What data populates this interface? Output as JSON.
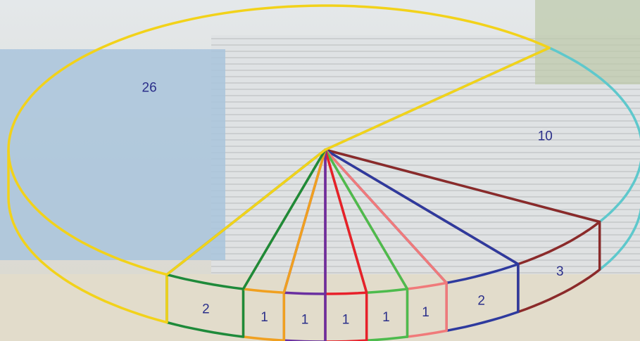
{
  "chart_data": {
    "type": "pie",
    "values": [
      10,
      3,
      2,
      1,
      1,
      1,
      1,
      1,
      2,
      26
    ],
    "colors": [
      "#5ec8cc",
      "#8b2a2a",
      "#2e3a9e",
      "#f07a7a",
      "#4dbb4d",
      "#e8202a",
      "#6a2fa0",
      "#f0a020",
      "#1e8a3a",
      "#f2d21a"
    ],
    "start_angle": -45,
    "clockwise": true,
    "three_d": true
  }
}
